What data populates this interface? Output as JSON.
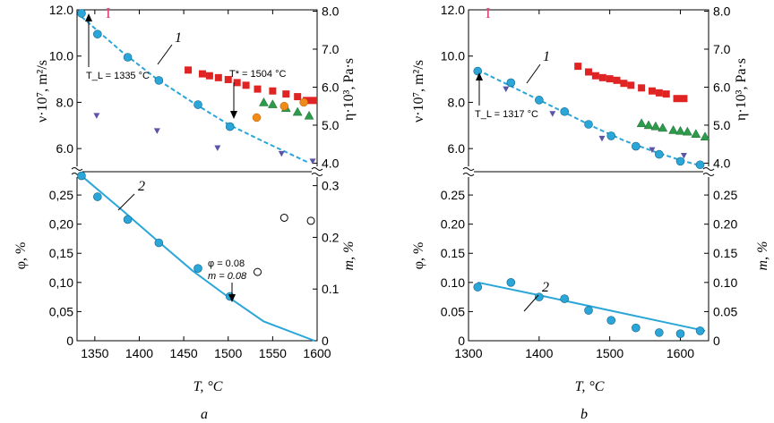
{
  "chart_data": [
    {
      "panel": "a",
      "type": "scatter",
      "x_tick_labels": [
        "1350",
        "1400",
        "1450",
        "1500",
        "1550",
        "1600"
      ],
      "xlabel_text": "T, °C",
      "xlim": [
        1330,
        1600
      ],
      "upper": {
        "ylabel_left_text": "ν·10⁷, m²/s",
        "ylabel_right_text": "η·10³, Pa·s",
        "ylim_left": [
          5.0,
          12.0
        ],
        "ylim_right": [
          3.775,
          8.035
        ],
        "left_tick_labels": [
          "6.0",
          "8.0",
          "10.0",
          "12.0"
        ],
        "right_tick_labels": [
          "4.0",
          "5.0",
          "6.0",
          "7.0",
          "8.0"
        ],
        "curve_label": "1",
        "errorbar_label": "I",
        "annotation_TL": "T_L = 1335 °C",
        "annotation_Tstar": "T* = 1504 °C",
        "nu_points": [
          [
            1335,
            11.85
          ],
          [
            1353,
            10.95
          ],
          [
            1387,
            9.95
          ],
          [
            1422,
            8.95
          ],
          [
            1466,
            7.9
          ],
          [
            1502,
            6.95
          ]
        ],
        "nu_fit": [
          [
            1335,
            11.7
          ],
          [
            1380,
            10.2
          ],
          [
            1420,
            9.0
          ],
          [
            1460,
            8.0
          ],
          [
            1500,
            7.05
          ],
          [
            1540,
            6.3
          ],
          [
            1590,
            5.4
          ]
        ],
        "eta_squares": [
          [
            1455,
            6.45
          ],
          [
            1471,
            6.35
          ],
          [
            1479,
            6.3
          ],
          [
            1489,
            6.25
          ],
          [
            1500,
            6.2
          ],
          [
            1510,
            6.12
          ],
          [
            1520,
            6.05
          ],
          [
            1533,
            5.95
          ],
          [
            1550,
            5.9
          ],
          [
            1565,
            5.82
          ],
          [
            1578,
            5.75
          ],
          [
            1588,
            5.65
          ],
          [
            1596,
            5.65
          ]
        ],
        "eta_triangles": [
          [
            1540,
            5.6
          ],
          [
            1550,
            5.55
          ],
          [
            1565,
            5.45
          ],
          [
            1578,
            5.35
          ],
          [
            1591,
            5.25
          ]
        ],
        "eta_orange": [
          [
            1532,
            5.2
          ],
          [
            1563,
            5.5
          ],
          [
            1585,
            5.6
          ]
        ],
        "eta_down_triangles": [
          [
            1352,
            5.25
          ],
          [
            1420,
            4.85
          ],
          [
            1488,
            4.4
          ],
          [
            1560,
            4.25
          ],
          [
            1595,
            4.05
          ]
        ]
      },
      "lower": {
        "ylabel_left_text": "φ, %",
        "ylabel_right_text": "m, %",
        "ylim_left": [
          0,
          0.29
        ],
        "ylim_right": [
          0,
          0.327
        ],
        "left_tick_labels": [
          "0",
          "0,05",
          "0,10",
          "0,15",
          "0,20",
          "0,25"
        ],
        "right_tick_labels": [
          "0",
          "0.1",
          "0.2",
          "0.3"
        ],
        "curve_label": "2",
        "annotation_phi": "φ = 0.08",
        "annotation_m": "m = 0.08",
        "phi_points": [
          [
            1335,
            0.283
          ],
          [
            1353,
            0.247
          ],
          [
            1387,
            0.208
          ],
          [
            1422,
            0.168
          ],
          [
            1466,
            0.124
          ],
          [
            1502,
            0.076
          ]
        ],
        "phi_fit": [
          [
            1335,
            0.283
          ],
          [
            1380,
            0.225
          ],
          [
            1420,
            0.172
          ],
          [
            1460,
            0.12
          ],
          [
            1500,
            0.075
          ],
          [
            1540,
            0.033
          ],
          [
            1597,
            0.0
          ]
        ],
        "m_open_circles": [
          [
            1533,
            0.133
          ],
          [
            1563,
            0.238
          ],
          [
            1593,
            0.232
          ]
        ]
      },
      "panel_label": "a"
    },
    {
      "panel": "b",
      "type": "scatter",
      "x_tick_labels": [
        "1300",
        "1400",
        "1500",
        "1600"
      ],
      "xlabel_text": "T, °C",
      "xlim": [
        1300,
        1640
      ],
      "upper": {
        "ylabel_left_text": "ν·10⁷, m²/s",
        "ylabel_right_text": "η·10³, Pa·s",
        "ylim_left": [
          5.0,
          12.0
        ],
        "ylim_right": [
          3.775,
          8.035
        ],
        "left_tick_labels": [
          "6.0",
          "8.0",
          "10.0",
          "12.0"
        ],
        "right_tick_labels": [
          "4.0",
          "5.0",
          "6.0",
          "7.0",
          "8.0"
        ],
        "curve_label": "1",
        "errorbar_label": "I",
        "annotation_TL": "T_L = 1317 °C",
        "nu_points": [
          [
            1313,
            9.35
          ],
          [
            1360,
            8.85
          ],
          [
            1400,
            8.1
          ],
          [
            1436,
            7.6
          ],
          [
            1470,
            7.05
          ],
          [
            1502,
            6.55
          ],
          [
            1537,
            6.1
          ],
          [
            1570,
            5.75
          ],
          [
            1600,
            5.45
          ],
          [
            1628,
            5.3
          ]
        ],
        "nu_fit": [
          [
            1313,
            9.4
          ],
          [
            1360,
            8.7
          ],
          [
            1400,
            8.1
          ],
          [
            1440,
            7.5
          ],
          [
            1480,
            6.9
          ],
          [
            1520,
            6.35
          ],
          [
            1560,
            5.9
          ],
          [
            1600,
            5.5
          ],
          [
            1630,
            5.25
          ]
        ],
        "eta_squares": [
          [
            1455,
            6.55
          ],
          [
            1470,
            6.4
          ],
          [
            1480,
            6.3
          ],
          [
            1490,
            6.25
          ],
          [
            1500,
            6.22
          ],
          [
            1510,
            6.18
          ],
          [
            1520,
            6.1
          ],
          [
            1530,
            6.05
          ],
          [
            1545,
            5.98
          ],
          [
            1560,
            5.9
          ],
          [
            1570,
            5.85
          ],
          [
            1580,
            5.82
          ],
          [
            1595,
            5.7
          ],
          [
            1605,
            5.7
          ]
        ],
        "eta_triangles": [
          [
            1545,
            5.05
          ],
          [
            1555,
            5.0
          ],
          [
            1565,
            4.97
          ],
          [
            1575,
            4.93
          ],
          [
            1590,
            4.87
          ],
          [
            1600,
            4.85
          ],
          [
            1610,
            4.83
          ],
          [
            1622,
            4.77
          ],
          [
            1635,
            4.7
          ]
        ],
        "eta_down_triangles": [
          [
            1353,
            5.95
          ],
          [
            1419,
            5.3
          ],
          [
            1489,
            4.65
          ],
          [
            1560,
            4.35
          ],
          [
            1605,
            4.2
          ]
        ]
      },
      "lower": {
        "ylabel_left_text": "φ, %",
        "ylabel_right_text": "m, %",
        "ylim_left": [
          0,
          0.29
        ],
        "ylim_right": [
          0,
          0.29
        ],
        "left_tick_labels": [
          "0",
          "0.05",
          "0.10",
          "0.15",
          "0.20",
          "0.25"
        ],
        "right_tick_labels": [
          "0",
          "0.05",
          "0.10",
          "0.15",
          "0.20",
          "0.25"
        ],
        "curve_label": "2",
        "phi_points": [
          [
            1313,
            0.092
          ],
          [
            1360,
            0.1
          ],
          [
            1400,
            0.075
          ],
          [
            1436,
            0.072
          ],
          [
            1470,
            0.052
          ],
          [
            1502,
            0.035
          ],
          [
            1537,
            0.022
          ],
          [
            1570,
            0.014
          ],
          [
            1600,
            0.012
          ],
          [
            1628,
            0.017
          ]
        ],
        "phi_fit": [
          [
            1313,
            0.1
          ],
          [
            1400,
            0.078
          ],
          [
            1500,
            0.052
          ],
          [
            1600,
            0.026
          ],
          [
            1635,
            0.017
          ]
        ],
        "m_open_circles": []
      },
      "panel_label": "b"
    }
  ]
}
